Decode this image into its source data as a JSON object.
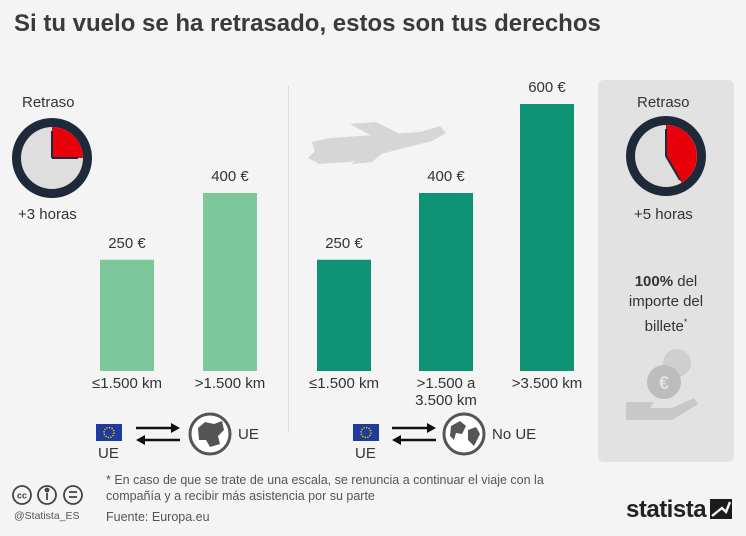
{
  "title": "Si tu vuelo se ha retrasado, estos son tus derechos",
  "left": {
    "delay_label": "Retraso",
    "delay_value": "+3 horas",
    "region_from": "UE",
    "region_to": "UE"
  },
  "middle": {
    "region_from": "UE",
    "region_to": "No UE"
  },
  "right": {
    "delay_label": "Retraso",
    "delay_value": "+5 horas",
    "refund_bold": "100%",
    "refund_text_1": "del",
    "refund_text_2": "importe del",
    "refund_text_3": "billete",
    "refund_mark": "*"
  },
  "footnote": "* En caso de que se trate de una escala, se renuncia a continuar el viaje con la compañía y a recibir más asistencia por su parte",
  "source": "Fuente: Europa.eu",
  "handle": "@Statista_ES",
  "brand": "statista",
  "colors": {
    "light_green": "#7cc89b",
    "dark_green": "#0e9474",
    "clock_red": "#e8000b",
    "clock_ring": "#1e2a3a"
  },
  "chart_data": [
    {
      "type": "bar",
      "title": "",
      "categories": [
        "≤1.500 km",
        ">1.500 km"
      ],
      "values": [
        250,
        400
      ],
      "value_labels": [
        "250 €",
        "400 €"
      ],
      "unit": "€",
      "color": "#7cc89b"
    },
    {
      "type": "bar",
      "title": "",
      "categories": [
        "≤1.500 km",
        ">1.500 a 3.500 km",
        ">3.500 km"
      ],
      "category_lines": [
        [
          "≤1.500 km"
        ],
        [
          ">1.500 a",
          "3.500 km"
        ],
        [
          ">3.500 km"
        ]
      ],
      "values": [
        250,
        400,
        600
      ],
      "value_labels": [
        "250 €",
        "400 €",
        "600 €"
      ],
      "unit": "€",
      "color": "#0e9474"
    }
  ]
}
